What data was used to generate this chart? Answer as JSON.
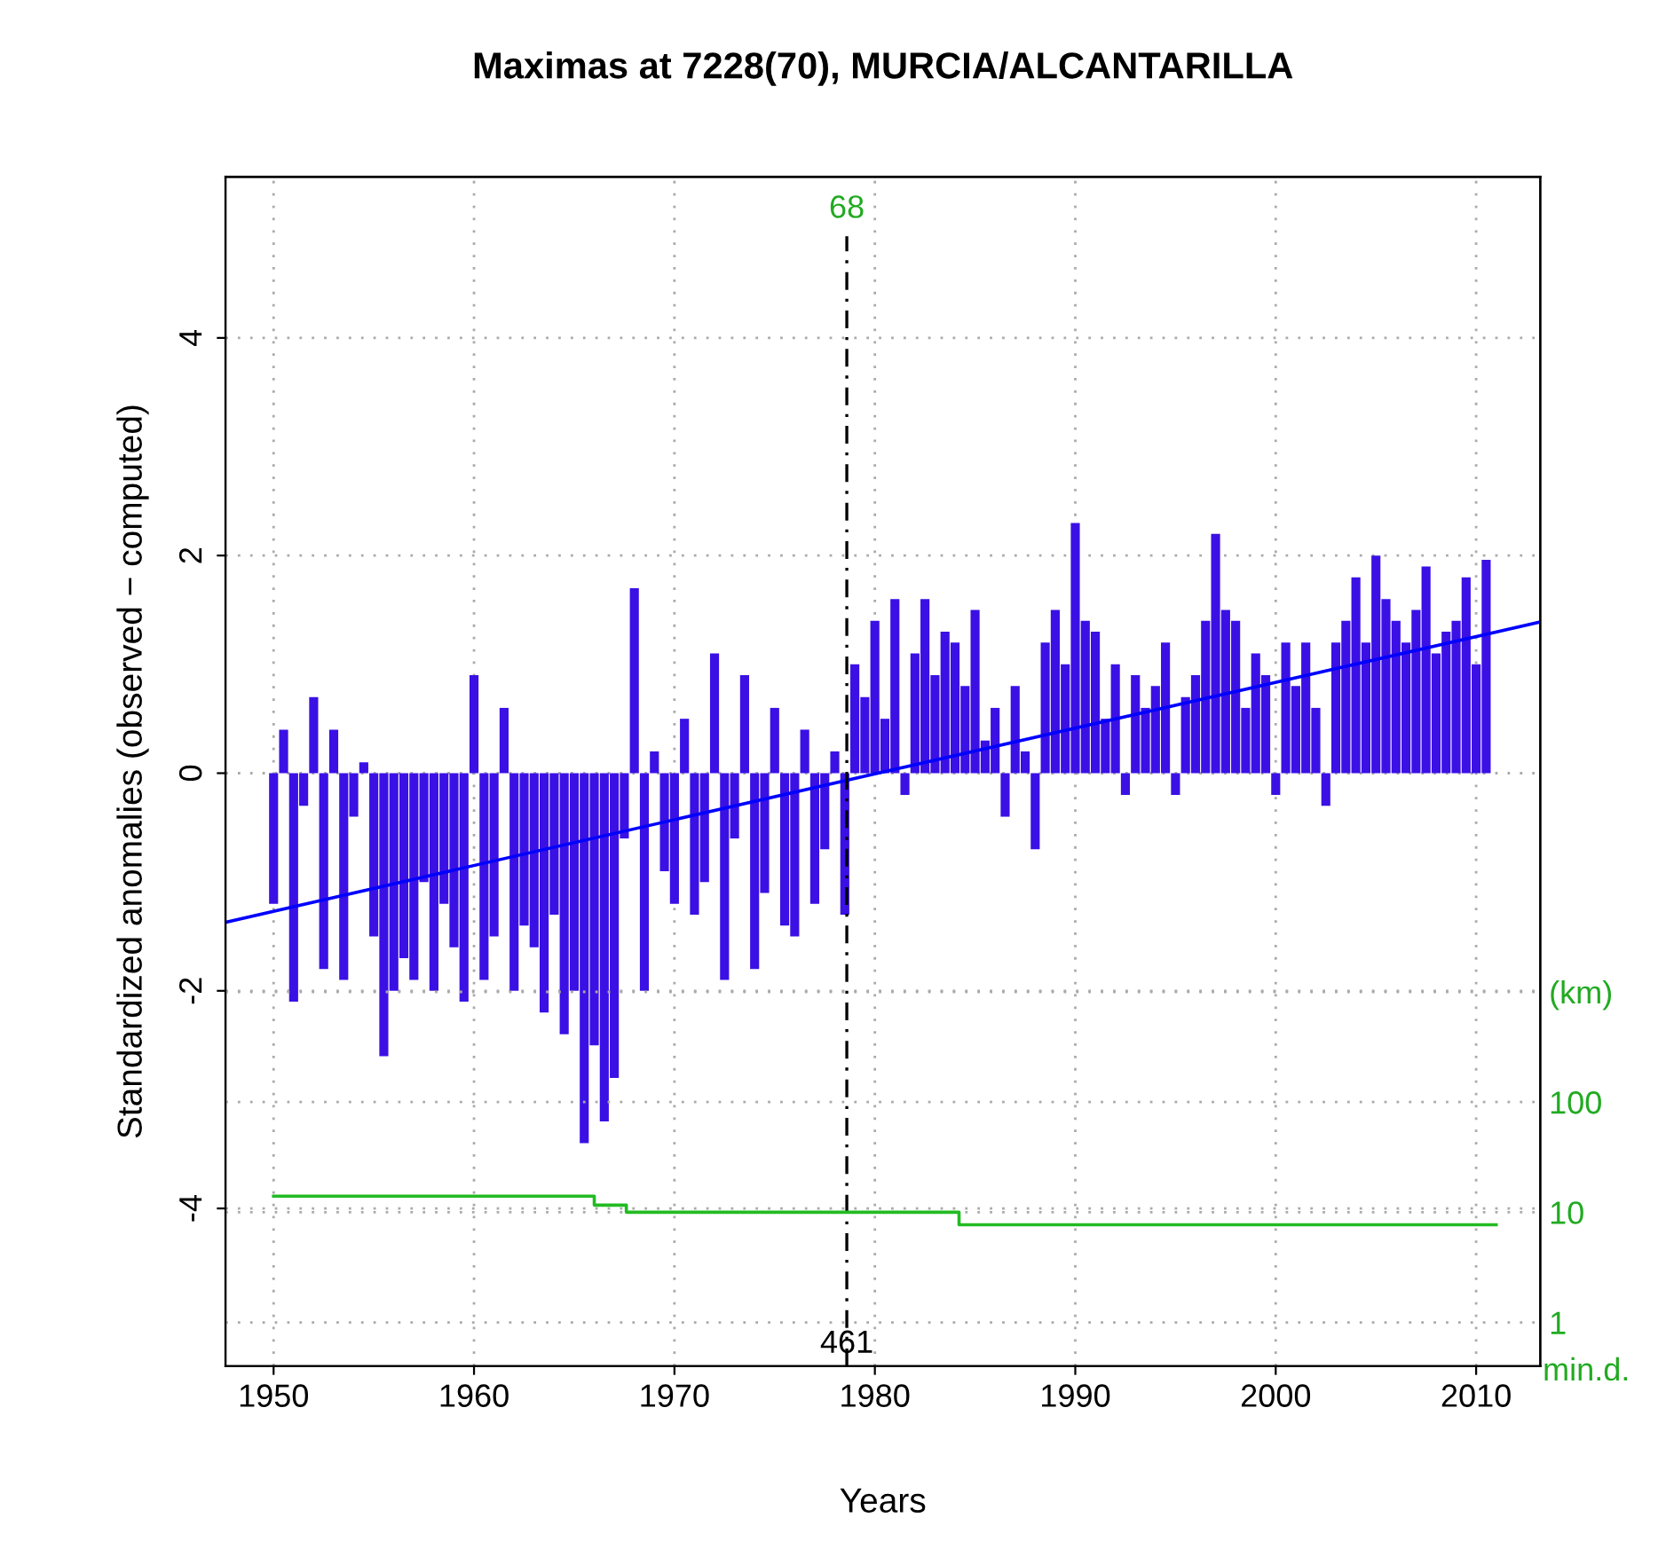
{
  "chart_data": {
    "type": "bar",
    "title": "Maximas at 7228(70), MURCIA/ALCANTARILLA",
    "xlabel": "Years",
    "ylabel": "Standardized anomalies (observed − computed)",
    "y2label": "min.d.",
    "xlim": [
      1947.6,
      2013.2
    ],
    "xticks": [
      1950,
      1960,
      1970,
      1980,
      1990,
      2000,
      2010
    ],
    "ylim": [
      -5.45,
      5.48
    ],
    "yticks": [
      -4,
      -2,
      0,
      2,
      4
    ],
    "y2lim": [
      0.4,
      25000000000
    ],
    "y2ticks": [
      1,
      10,
      100,
      {
        "value": 1000,
        "label": "(km)"
      }
    ],
    "log": "y2",
    "grid": true,
    "series": [
      {
        "color": "#3a10e5",
        "x": [
          1950.0,
          1950.5,
          1951.0,
          1951.5,
          1952.0,
          1952.5,
          1953.0,
          1953.5,
          1954.0,
          1954.5,
          1955.0,
          1955.5,
          1956.0,
          1956.5,
          1957.0,
          1957.5,
          1958.0,
          1958.5,
          1959.0,
          1959.5,
          1960.0,
          1960.5,
          1961.0,
          1961.5,
          1962.0,
          1962.5,
          1963.0,
          1963.5,
          1964.0,
          1964.5,
          1965.0,
          1965.5,
          1966.0,
          1966.5,
          1967.0,
          1967.5,
          1968.0,
          1968.5,
          1969.0,
          1969.5,
          1970.0,
          1970.5,
          1971.0,
          1971.5,
          1972.0,
          1972.5,
          1973.0,
          1973.5,
          1974.0,
          1974.5,
          1975.0,
          1975.5,
          1976.0,
          1976.5,
          1977.0,
          1977.5,
          1978.0,
          1978.5,
          1979.0,
          1979.5,
          1980.0,
          1980.5,
          1981.0,
          1981.5,
          1982.0,
          1982.5,
          1983.0,
          1983.5,
          1984.0,
          1984.5,
          1985.0,
          1985.5,
          1986.0,
          1986.5,
          1987.0,
          1987.5,
          1988.0,
          1988.5,
          1989.0,
          1989.5,
          1990.0,
          1990.5,
          1991.0,
          1991.5,
          1992.0,
          1992.5,
          1993.0,
          1993.5,
          1994.0,
          1994.5,
          1995.0,
          1995.5,
          1996.0,
          1996.5,
          1997.0,
          1997.5,
          1998.0,
          1998.5,
          1999.0,
          1999.5,
          2000.0,
          2000.5,
          2001.0,
          2001.5,
          2002.0,
          2002.5,
          2003.0,
          2003.5,
          2004.0,
          2004.5,
          2005.0,
          2005.5,
          2006.0,
          2006.5,
          2007.0,
          2007.5,
          2008.0,
          2008.5,
          2009.0,
          2009.5,
          2010.0,
          2010.5
        ],
        "values": [
          -1.2,
          0.4,
          -2.1,
          -0.3,
          0.7,
          -1.8,
          0.4,
          -1.9,
          -0.4,
          0.1,
          -1.5,
          -2.6,
          -2.0,
          -1.7,
          -1.9,
          -1.0,
          -2.0,
          -1.2,
          -1.6,
          -2.1,
          0.9,
          -1.9,
          -1.5,
          0.6,
          -2.0,
          -1.4,
          -1.6,
          -2.2,
          -1.3,
          -2.4,
          -2.0,
          -3.4,
          -2.5,
          -3.2,
          -2.8,
          -0.6,
          1.7,
          -2.0,
          0.2,
          -0.9,
          -1.2,
          0.5,
          -1.3,
          -1.0,
          1.1,
          -1.9,
          -0.6,
          0.9,
          -1.8,
          -1.1,
          0.6,
          -1.4,
          -1.5,
          0.4,
          -1.2,
          -0.7,
          0.2,
          -1.3,
          1.0,
          0.7,
          1.4,
          0.5,
          1.6,
          -0.2,
          1.1,
          1.6,
          0.9,
          1.3,
          1.2,
          0.8,
          1.5,
          0.3,
          0.6,
          -0.4,
          0.8,
          0.2,
          -0.7,
          1.2,
          1.5,
          1.0,
          2.3,
          1.4,
          1.3,
          0.5,
          1.0,
          -0.2,
          0.9,
          0.6,
          0.8,
          1.2,
          -0.2,
          0.7,
          0.9,
          1.4,
          2.2,
          1.5,
          1.4,
          0.6,
          1.1,
          0.9,
          -0.2,
          1.2,
          0.8,
          1.2,
          0.6,
          -0.3,
          1.2,
          1.4,
          1.8,
          1.2,
          2.0,
          1.6,
          1.4,
          1.2,
          1.5,
          1.9,
          1.1,
          1.3,
          1.4,
          1.8,
          1.0,
          1.96
        ]
      },
      {
        "type": "line",
        "color": "#0000ff",
        "x": [
          1947.6,
          2013.2
        ],
        "values": [
          -1.37,
          1.39
        ]
      },
      {
        "type": "step",
        "axis": "y2",
        "color": "#22bb22",
        "x": [
          1950,
          1966,
          1967.6,
          1984.2,
          2011
        ],
        "values": [
          14,
          11.6,
          10,
          7.7,
          7.7
        ]
      }
    ],
    "ref_lines": [
      {
        "axis": "x",
        "value": 1978.6,
        "color": "#000000",
        "line_style": "dashed"
      }
    ],
    "annotations": [
      "68",
      {
        "text": "461",
        "x": 1978.6,
        "y": -5.25
      }
    ]
  }
}
